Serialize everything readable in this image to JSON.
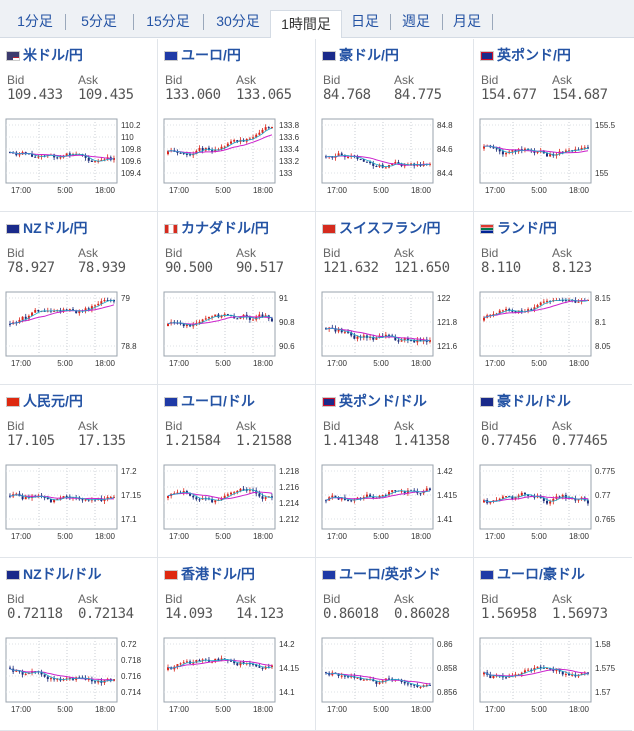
{
  "tabs": [
    "1分足",
    "5分足",
    "15分足",
    "30分足",
    "1時間足",
    "日足",
    "週足",
    "月足"
  ],
  "active_tab": 4,
  "bid_label": "Bid",
  "ask_label": "Ask",
  "x_ticks": [
    "17:00",
    "5:00",
    "18:00"
  ],
  "colors": {
    "up": "#d9261c",
    "down": "#1c2c7a",
    "ma1": "#cc22cc",
    "ma2": "#1aa7c8"
  },
  "pairs": [
    {
      "name": "米ドル/円",
      "flag": "us",
      "bid": "109.433",
      "ask": "109.435",
      "y_ticks": [
        "110.2",
        "110",
        "109.8",
        "109.6",
        "109.4"
      ]
    },
    {
      "name": "ユーロ/円",
      "flag": "eu",
      "bid": "133.060",
      "ask": "133.065",
      "y_ticks": [
        "133.8",
        "133.6",
        "133.4",
        "133.2",
        "133"
      ]
    },
    {
      "name": "豪ドル/円",
      "flag": "au",
      "bid": "84.768",
      "ask": "84.775",
      "y_ticks": [
        "84.8",
        "84.6",
        "84.4"
      ]
    },
    {
      "name": "英ポンド/円",
      "flag": "gb",
      "bid": "154.677",
      "ask": "154.687",
      "y_ticks": [
        "155.5",
        "155"
      ]
    },
    {
      "name": "NZドル/円",
      "flag": "nz",
      "bid": "78.927",
      "ask": "78.939",
      "y_ticks": [
        "79",
        "78.8"
      ]
    },
    {
      "name": "カナダドル/円",
      "flag": "ca",
      "bid": "90.500",
      "ask": "90.517",
      "y_ticks": [
        "91",
        "90.8",
        "90.6"
      ]
    },
    {
      "name": "スイスフラン/円",
      "flag": "ch",
      "bid": "121.632",
      "ask": "121.650",
      "y_ticks": [
        "122",
        "121.8",
        "121.6"
      ]
    },
    {
      "name": "ランド/円",
      "flag": "za",
      "bid": "8.110",
      "ask": "8.123",
      "y_ticks": [
        "8.15",
        "8.1",
        "8.05"
      ]
    },
    {
      "name": "人民元/円",
      "flag": "cn",
      "bid": "17.105",
      "ask": "17.135",
      "y_ticks": [
        "17.2",
        "17.15",
        "17.1"
      ]
    },
    {
      "name": "ユーロ/ドル",
      "flag": "eu",
      "bid": "1.21584",
      "ask": "1.21588",
      "y_ticks": [
        "1.218",
        "1.216",
        "1.214",
        "1.212"
      ]
    },
    {
      "name": "英ポンド/ドル",
      "flag": "gb",
      "bid": "1.41348",
      "ask": "1.41358",
      "y_ticks": [
        "1.42",
        "1.415",
        "1.41"
      ]
    },
    {
      "name": "豪ドル/ドル",
      "flag": "au",
      "bid": "0.77456",
      "ask": "0.77465",
      "y_ticks": [
        "0.775",
        "0.77",
        "0.765"
      ]
    },
    {
      "name": "NZドル/ドル",
      "flag": "nz",
      "bid": "0.72118",
      "ask": "0.72134",
      "y_ticks": [
        "0.72",
        "0.718",
        "0.716",
        "0.714"
      ]
    },
    {
      "name": "香港ドル/円",
      "flag": "hk",
      "bid": "14.093",
      "ask": "14.123",
      "y_ticks": [
        "14.2",
        "14.15",
        "14.1"
      ]
    },
    {
      "name": "ユーロ/英ポンド",
      "flag": "eu",
      "bid": "0.86018",
      "ask": "0.86028",
      "y_ticks": [
        "0.86",
        "0.858",
        "0.856"
      ]
    },
    {
      "name": "ユーロ/豪ドル",
      "flag": "eu",
      "bid": "1.56958",
      "ask": "1.56973",
      "y_ticks": [
        "1.58",
        "1.575",
        "1.57"
      ]
    }
  ]
}
